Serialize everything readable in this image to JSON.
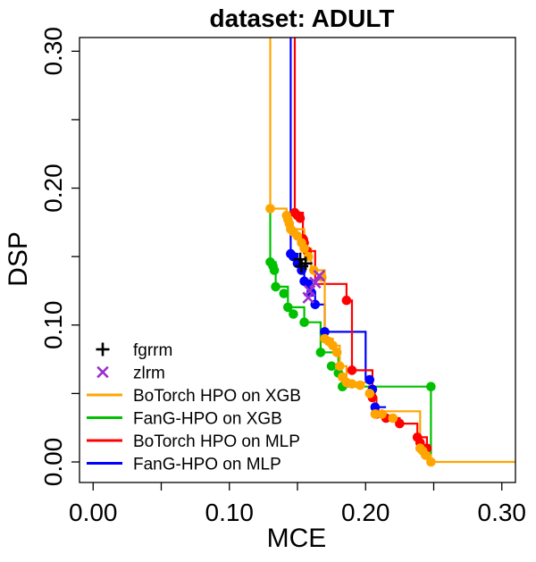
{
  "chart_data": {
    "type": "line",
    "title": "dataset: ADULT",
    "xlabel": "MCE",
    "ylabel": "DSP",
    "xlim": [
      -0.01,
      0.31
    ],
    "ylim": [
      -0.015,
      0.31
    ],
    "xticks": [
      0.0,
      0.1,
      0.2,
      0.3
    ],
    "xtick_labels": [
      "0.00",
      "0.10",
      "0.20",
      "0.30"
    ],
    "yticks": [
      0.0,
      0.1,
      0.2,
      0.3
    ],
    "ytick_labels": [
      "0.00",
      "0.10",
      "0.20",
      "0.30"
    ],
    "legend_position": "bottom-left",
    "markers": [
      {
        "name": "fgrrm",
        "symbol": "+",
        "color": "#000000",
        "points": [
          [
            0.152,
            0.148
          ],
          [
            0.153,
            0.143
          ],
          [
            0.156,
            0.145
          ]
        ]
      },
      {
        "name": "zlrm",
        "symbol": "x",
        "color": "#9b30d0",
        "points": [
          [
            0.159,
            0.125
          ],
          [
            0.163,
            0.131
          ],
          [
            0.166,
            0.136
          ],
          [
            0.158,
            0.12
          ]
        ]
      }
    ],
    "series": [
      {
        "name": "BoTorch HPO on XGB",
        "color": "#ffa500",
        "points": [
          [
            0.13,
            0.185
          ],
          [
            0.142,
            0.18
          ],
          [
            0.143,
            0.177
          ],
          [
            0.144,
            0.174
          ],
          [
            0.145,
            0.17
          ],
          [
            0.147,
            0.168
          ],
          [
            0.15,
            0.165
          ],
          [
            0.153,
            0.16
          ],
          [
            0.155,
            0.156
          ],
          [
            0.158,
            0.15
          ],
          [
            0.162,
            0.14
          ],
          [
            0.168,
            0.135
          ],
          [
            0.17,
            0.09
          ],
          [
            0.173,
            0.088
          ],
          [
            0.176,
            0.085
          ],
          [
            0.179,
            0.08
          ],
          [
            0.181,
            0.07
          ],
          [
            0.183,
            0.062
          ],
          [
            0.186,
            0.058
          ],
          [
            0.19,
            0.057
          ],
          [
            0.196,
            0.056
          ],
          [
            0.203,
            0.05
          ],
          [
            0.207,
            0.035
          ],
          [
            0.212,
            0.035
          ],
          [
            0.22,
            0.032
          ],
          [
            0.24,
            0.01
          ],
          [
            0.242,
            0.008
          ],
          [
            0.244,
            0.005
          ],
          [
            0.248,
            0.0
          ]
        ],
        "step_path": [
          [
            0.13,
            0.32
          ],
          [
            0.13,
            0.185
          ],
          [
            0.142,
            0.185
          ],
          [
            0.142,
            0.18
          ],
          [
            0.145,
            0.18
          ],
          [
            0.145,
            0.17
          ],
          [
            0.155,
            0.17
          ],
          [
            0.155,
            0.156
          ],
          [
            0.16,
            0.156
          ],
          [
            0.16,
            0.14
          ],
          [
            0.17,
            0.14
          ],
          [
            0.17,
            0.09
          ],
          [
            0.176,
            0.09
          ],
          [
            0.176,
            0.085
          ],
          [
            0.181,
            0.085
          ],
          [
            0.181,
            0.07
          ],
          [
            0.186,
            0.07
          ],
          [
            0.186,
            0.058
          ],
          [
            0.203,
            0.058
          ],
          [
            0.203,
            0.05
          ],
          [
            0.207,
            0.05
          ],
          [
            0.207,
            0.037
          ],
          [
            0.24,
            0.037
          ],
          [
            0.24,
            0.01
          ],
          [
            0.244,
            0.01
          ],
          [
            0.244,
            0.005
          ],
          [
            0.248,
            0.005
          ],
          [
            0.248,
            0.0
          ],
          [
            0.31,
            0.0
          ]
        ]
      },
      {
        "name": "FanG-HPO on XGB",
        "color": "#00c000",
        "points": [
          [
            0.13,
            0.146
          ],
          [
            0.132,
            0.143
          ],
          [
            0.133,
            0.14
          ],
          [
            0.134,
            0.128
          ],
          [
            0.14,
            0.123
          ],
          [
            0.143,
            0.113
          ],
          [
            0.147,
            0.108
          ],
          [
            0.155,
            0.102
          ],
          [
            0.167,
            0.08
          ],
          [
            0.175,
            0.07
          ],
          [
            0.18,
            0.065
          ],
          [
            0.183,
            0.055
          ],
          [
            0.248,
            0.055
          ]
        ],
        "step_path": [
          [
            0.13,
            0.185
          ],
          [
            0.13,
            0.146
          ],
          [
            0.134,
            0.146
          ],
          [
            0.134,
            0.128
          ],
          [
            0.143,
            0.128
          ],
          [
            0.143,
            0.113
          ],
          [
            0.155,
            0.113
          ],
          [
            0.155,
            0.102
          ],
          [
            0.167,
            0.102
          ],
          [
            0.167,
            0.08
          ],
          [
            0.18,
            0.08
          ],
          [
            0.18,
            0.065
          ],
          [
            0.183,
            0.065
          ],
          [
            0.183,
            0.055
          ],
          [
            0.248,
            0.055
          ],
          [
            0.248,
            0.0
          ]
        ]
      },
      {
        "name": "BoTorch HPO on MLP",
        "color": "#ff0000",
        "points": [
          [
            0.148,
            0.182
          ],
          [
            0.15,
            0.18
          ],
          [
            0.152,
            0.178
          ],
          [
            0.154,
            0.163
          ],
          [
            0.155,
            0.16
          ],
          [
            0.157,
            0.154
          ],
          [
            0.186,
            0.118
          ],
          [
            0.19,
            0.067
          ],
          [
            0.205,
            0.047
          ],
          [
            0.208,
            0.035
          ],
          [
            0.215,
            0.032
          ],
          [
            0.225,
            0.028
          ],
          [
            0.238,
            0.018
          ],
          [
            0.24,
            0.014
          ],
          [
            0.245,
            0.01
          ]
        ],
        "step_path": [
          [
            0.148,
            0.32
          ],
          [
            0.148,
            0.182
          ],
          [
            0.154,
            0.182
          ],
          [
            0.154,
            0.163
          ],
          [
            0.157,
            0.163
          ],
          [
            0.157,
            0.154
          ],
          [
            0.163,
            0.154
          ],
          [
            0.163,
            0.13
          ],
          [
            0.186,
            0.13
          ],
          [
            0.186,
            0.118
          ],
          [
            0.19,
            0.118
          ],
          [
            0.19,
            0.067
          ],
          [
            0.205,
            0.067
          ],
          [
            0.205,
            0.047
          ],
          [
            0.208,
            0.047
          ],
          [
            0.208,
            0.035
          ],
          [
            0.215,
            0.035
          ],
          [
            0.215,
            0.032
          ],
          [
            0.225,
            0.032
          ],
          [
            0.225,
            0.028
          ],
          [
            0.238,
            0.028
          ],
          [
            0.238,
            0.018
          ],
          [
            0.245,
            0.018
          ],
          [
            0.245,
            0.01
          ]
        ]
      },
      {
        "name": "FanG-HPO on MLP",
        "color": "#0000ff",
        "points": [
          [
            0.145,
            0.152
          ],
          [
            0.147,
            0.15
          ],
          [
            0.15,
            0.145
          ],
          [
            0.153,
            0.14
          ],
          [
            0.155,
            0.132
          ],
          [
            0.158,
            0.13
          ],
          [
            0.16,
            0.124
          ],
          [
            0.163,
            0.115
          ],
          [
            0.17,
            0.095
          ],
          [
            0.203,
            0.06
          ],
          [
            0.205,
            0.053
          ],
          [
            0.207,
            0.04
          ]
        ],
        "step_path": [
          [
            0.145,
            0.32
          ],
          [
            0.145,
            0.152
          ],
          [
            0.15,
            0.152
          ],
          [
            0.15,
            0.145
          ],
          [
            0.155,
            0.145
          ],
          [
            0.155,
            0.132
          ],
          [
            0.16,
            0.132
          ],
          [
            0.16,
            0.124
          ],
          [
            0.163,
            0.124
          ],
          [
            0.163,
            0.115
          ],
          [
            0.17,
            0.115
          ],
          [
            0.17,
            0.095
          ],
          [
            0.2,
            0.095
          ],
          [
            0.2,
            0.06
          ],
          [
            0.203,
            0.06
          ],
          [
            0.203,
            0.053
          ],
          [
            0.207,
            0.053
          ],
          [
            0.207,
            0.04
          ],
          [
            0.215,
            0.04
          ]
        ]
      }
    ]
  }
}
